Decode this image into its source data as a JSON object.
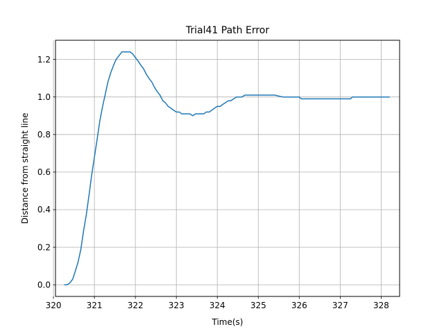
{
  "chart_data": {
    "type": "line",
    "title": "Trial41 Path Error",
    "xlabel": "Time(s)",
    "ylabel": "Distance from straight line",
    "xlim": [
      320.05,
      328.45
    ],
    "ylim": [
      -0.062,
      1.302
    ],
    "xticks": [
      320,
      321,
      322,
      323,
      324,
      325,
      326,
      327,
      328
    ],
    "yticks": [
      0.0,
      0.2,
      0.4,
      0.6,
      0.8,
      1.0,
      1.2
    ],
    "xtick_labels": [
      "320",
      "321",
      "322",
      "323",
      "324",
      "325",
      "326",
      "327",
      "328"
    ],
    "ytick_labels": [
      "0.0",
      "0.2",
      "0.4",
      "0.6",
      "0.8",
      "1.0",
      "1.2"
    ],
    "grid": true,
    "colors": {
      "line": "#1f77b4",
      "grid": "#b0b0b0",
      "axes": "#000000"
    },
    "series": [
      {
        "x": [
          320.27,
          320.33,
          320.4,
          320.47,
          320.53,
          320.6,
          320.67,
          320.73,
          320.8,
          320.87,
          320.93,
          321.0,
          321.07,
          321.13,
          321.2,
          321.27,
          321.33,
          321.4,
          321.47,
          321.53,
          321.6,
          321.67,
          321.73,
          321.8,
          321.87,
          321.93,
          322.0,
          322.07,
          322.13,
          322.2,
          322.27,
          322.33,
          322.4,
          322.47,
          322.53,
          322.6,
          322.67,
          322.73,
          322.8,
          322.87,
          322.93,
          323.0,
          323.07,
          323.13,
          323.2,
          323.27,
          323.33,
          323.4,
          323.47,
          323.53,
          323.6,
          323.67,
          323.73,
          323.8,
          323.87,
          323.93,
          324.0,
          324.07,
          324.13,
          324.2,
          324.27,
          324.33,
          324.4,
          324.47,
          324.53,
          324.6,
          324.67,
          324.73,
          325.0,
          325.4,
          325.6,
          326.0,
          326.05,
          326.5,
          327.0,
          327.25,
          327.3,
          327.8,
          328.2
        ],
        "y": [
          0.0,
          0.0,
          0.01,
          0.03,
          0.07,
          0.12,
          0.19,
          0.28,
          0.37,
          0.48,
          0.58,
          0.68,
          0.78,
          0.87,
          0.95,
          1.02,
          1.08,
          1.13,
          1.17,
          1.2,
          1.22,
          1.24,
          1.24,
          1.24,
          1.24,
          1.23,
          1.21,
          1.19,
          1.17,
          1.15,
          1.12,
          1.1,
          1.08,
          1.05,
          1.03,
          1.01,
          0.98,
          0.97,
          0.95,
          0.94,
          0.93,
          0.92,
          0.92,
          0.91,
          0.91,
          0.91,
          0.91,
          0.9,
          0.91,
          0.91,
          0.91,
          0.91,
          0.92,
          0.92,
          0.93,
          0.94,
          0.95,
          0.95,
          0.96,
          0.97,
          0.98,
          0.98,
          0.99,
          1.0,
          1.0,
          1.0,
          1.01,
          1.01,
          1.01,
          1.01,
          1.0,
          1.0,
          0.99,
          0.99,
          0.99,
          0.99,
          1.0,
          1.0,
          1.0
        ]
      }
    ]
  }
}
